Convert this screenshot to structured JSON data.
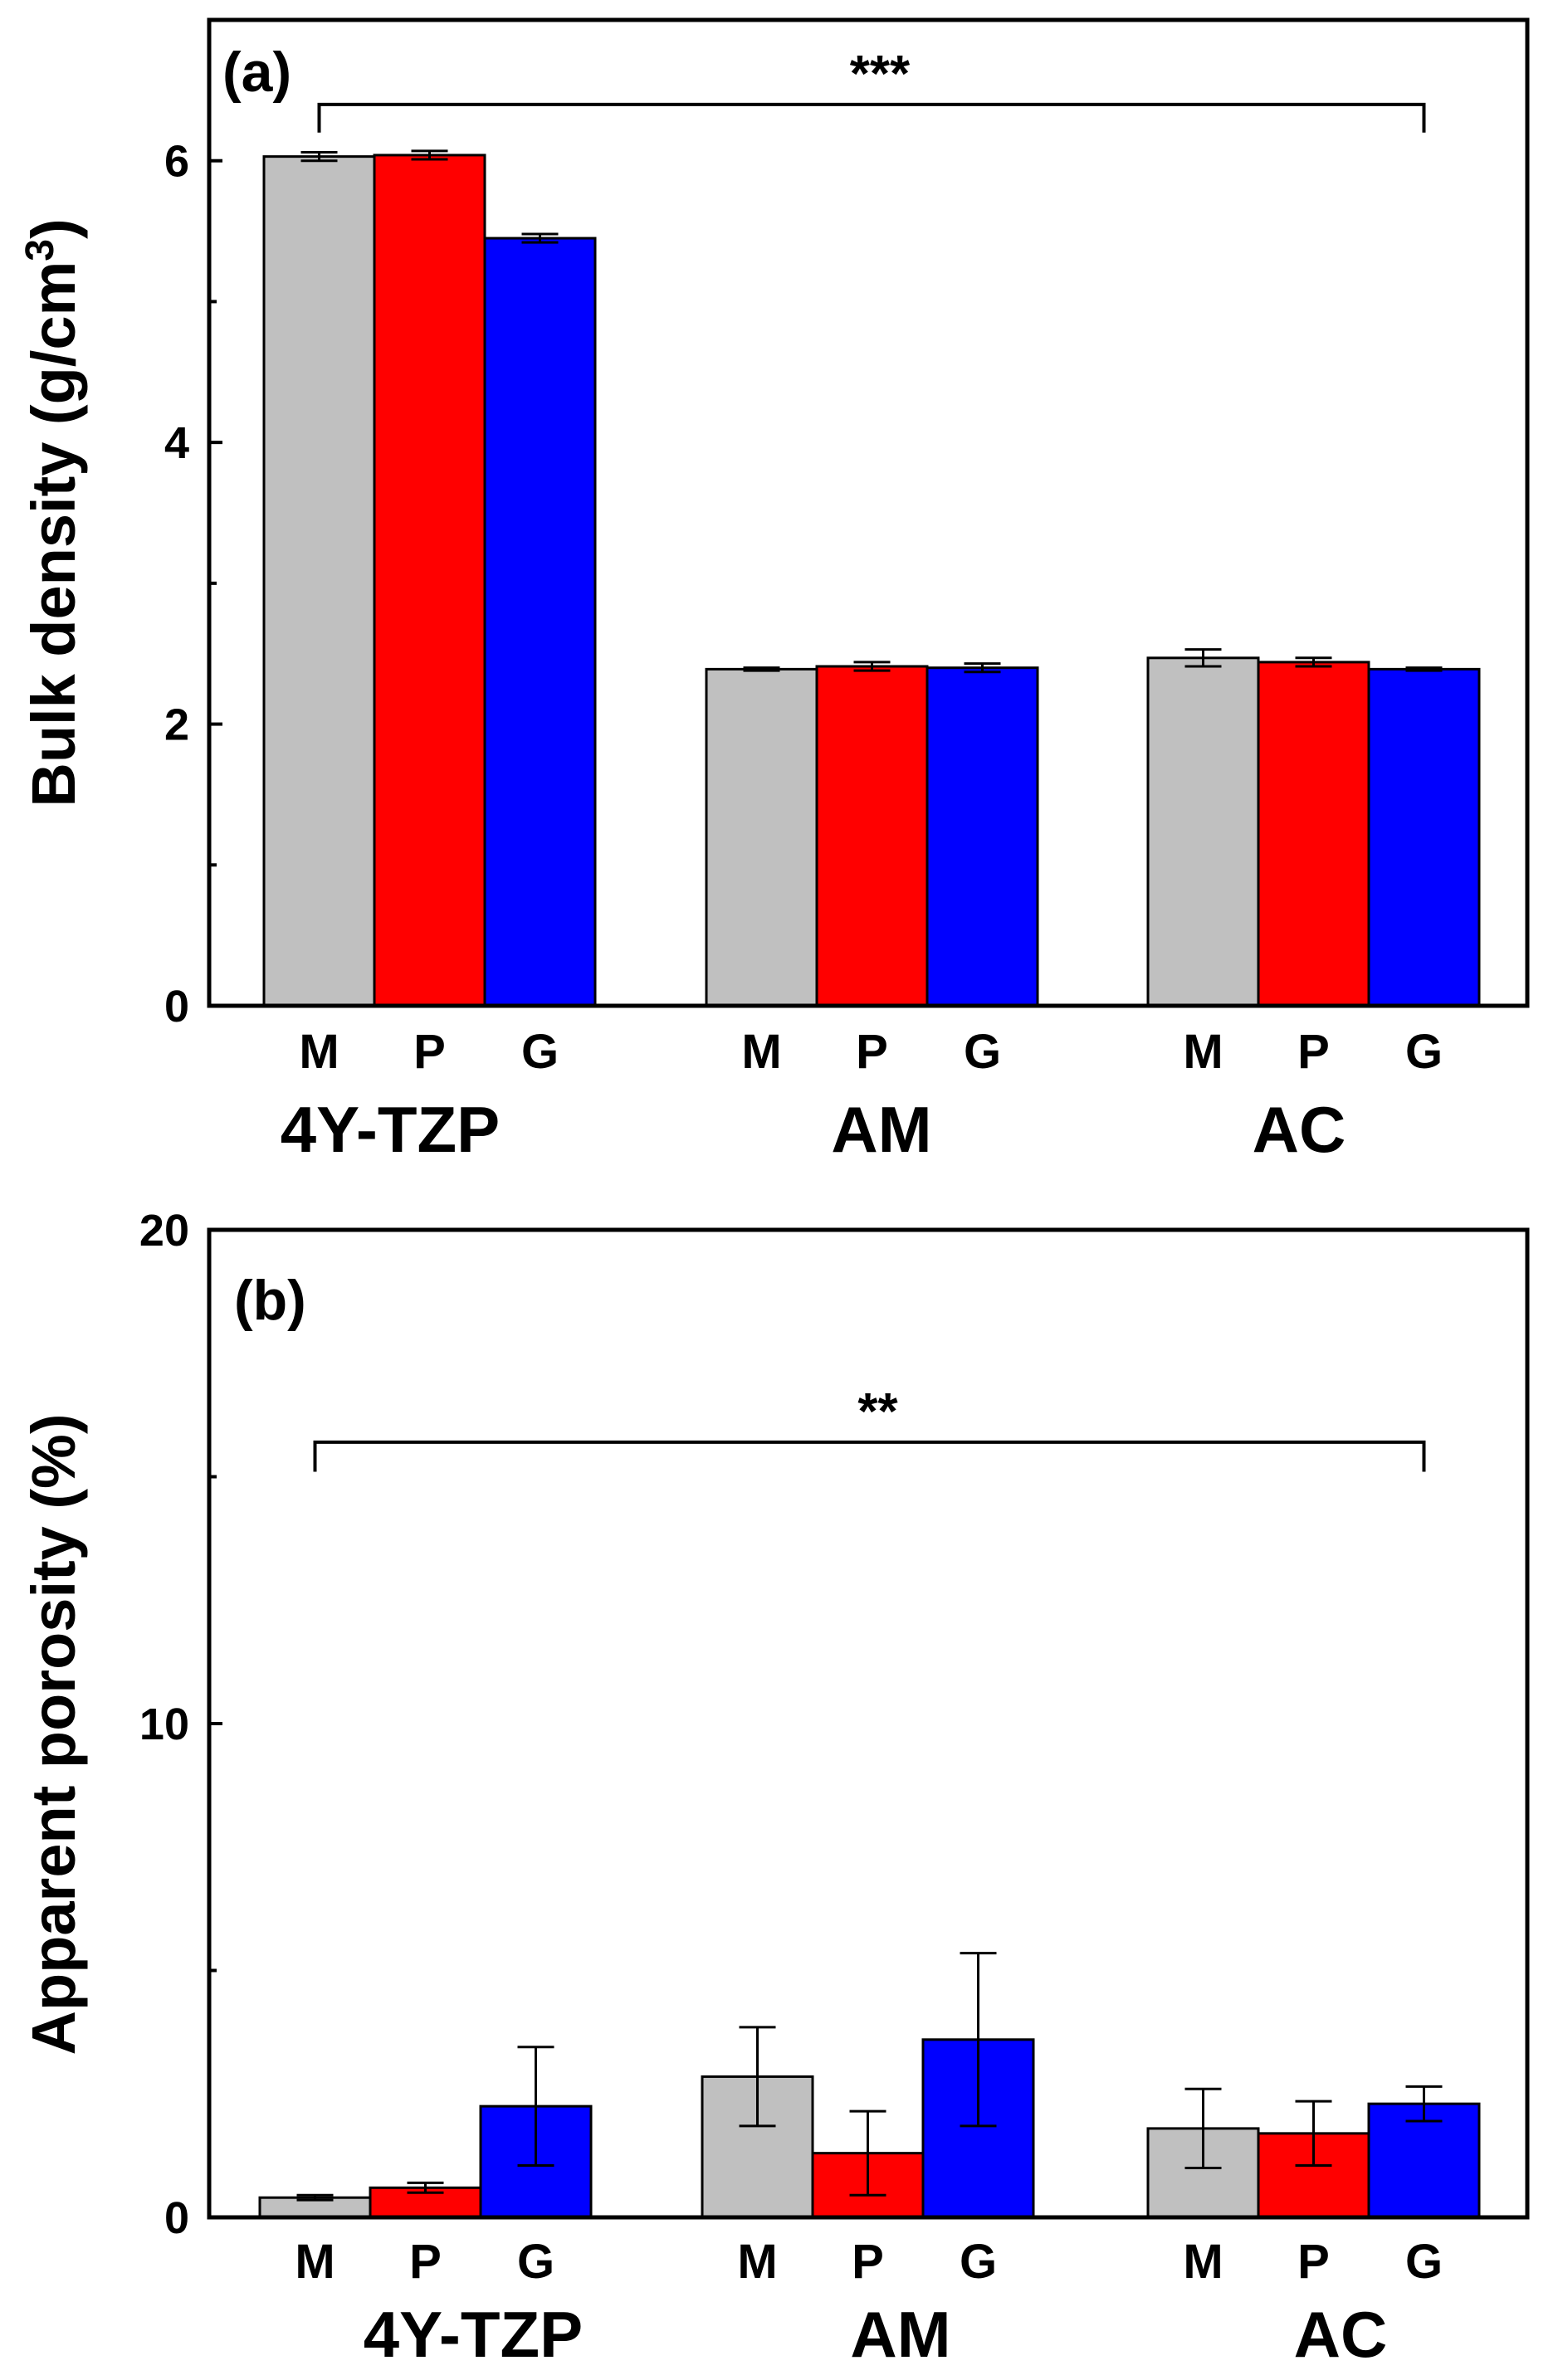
{
  "chart_data": [
    {
      "panel_label": "(a)",
      "type": "bar",
      "ylabel": "Bulk density (g/cm",
      "ylabel_sup": "3",
      "ylabel_close": ")",
      "ylim": [
        0,
        7
      ],
      "major_ticks": [
        0,
        2,
        4,
        6
      ],
      "minor_ticks": [
        1,
        3,
        5
      ],
      "groups": [
        "4Y-TZP",
        "AM",
        "AC"
      ],
      "bar_labels": [
        "M",
        "P",
        "G"
      ],
      "series": [
        {
          "name": "M",
          "color": "#c0c0c0",
          "values": [
            6.03,
            2.39,
            2.47
          ],
          "errors": [
            0.03,
            0.01,
            0.06
          ]
        },
        {
          "name": "P",
          "color": "#ff0000",
          "values": [
            6.04,
            2.41,
            2.44
          ],
          "errors": [
            0.03,
            0.03,
            0.03
          ]
        },
        {
          "name": "G",
          "color": "#0000ff",
          "values": [
            5.45,
            2.4,
            2.39
          ],
          "errors": [
            0.03,
            0.03,
            0.01
          ]
        }
      ],
      "significance": {
        "label": "***",
        "from_group": 0,
        "to_group": 2,
        "y": 6.4,
        "tick_drop": 0.2
      }
    },
    {
      "panel_label": "(b)",
      "type": "bar",
      "ylabel": "Apparent porosity (%)",
      "ylim": [
        0,
        20
      ],
      "major_ticks": [
        0,
        10,
        20
      ],
      "minor_ticks": [
        5,
        15
      ],
      "groups": [
        "4Y-TZP",
        "AM",
        "AC"
      ],
      "bar_labels": [
        "M",
        "P",
        "G"
      ],
      "series": [
        {
          "name": "M",
          "color": "#c0c0c0",
          "values": [
            0.4,
            2.85,
            1.8
          ],
          "errors": [
            0.05,
            1.0,
            0.8
          ]
        },
        {
          "name": "P",
          "color": "#ff0000",
          "values": [
            0.6,
            1.3,
            1.7
          ],
          "errors": [
            0.1,
            0.85,
            0.65
          ]
        },
        {
          "name": "G",
          "color": "#0000ff",
          "values": [
            2.25,
            3.6,
            2.3
          ],
          "errors": [
            1.2,
            1.75,
            0.35
          ]
        }
      ],
      "significance": {
        "label": "**",
        "from_group": 0,
        "to_group": 2,
        "y": 15.7,
        "tick_drop": 0.6
      }
    }
  ]
}
